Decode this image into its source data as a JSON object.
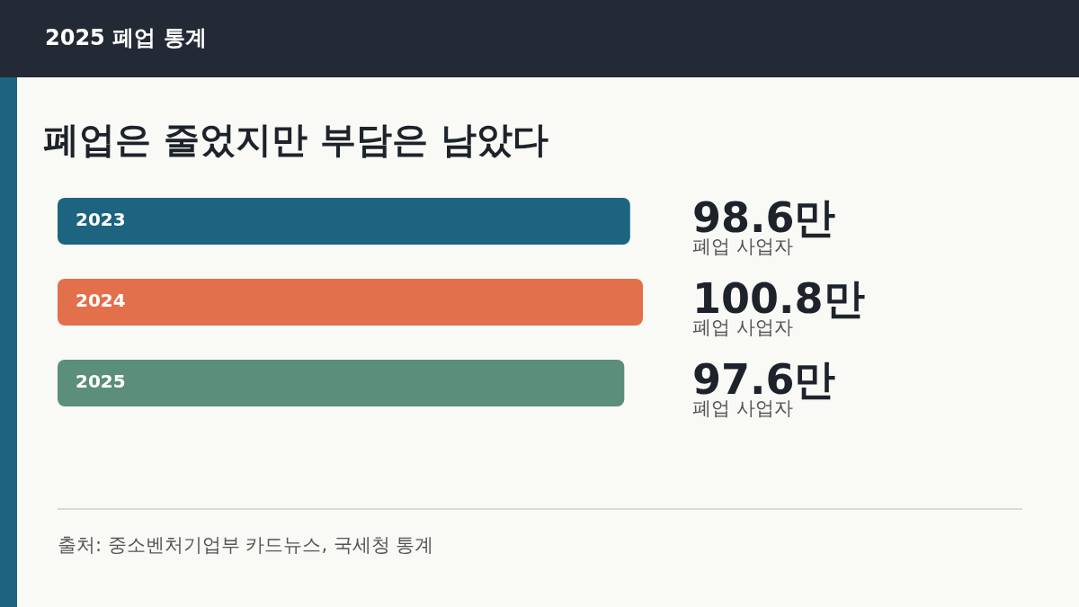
{
  "chart_data": {
    "type": "bar",
    "orientation": "horizontal",
    "subtitle": "2025 폐업 통계",
    "title": "폐업은 줄었지만 부담은 남았다",
    "categories": [
      "2023",
      "2024",
      "2025"
    ],
    "values": [
      98.6,
      100.8,
      97.6
    ],
    "colors": [
      "#1d6480",
      "#e2704b",
      "#5b8f7b"
    ],
    "value_labels": [
      "98.6만",
      "100.8만",
      "97.6만"
    ],
    "annotations": [
      "폐업 사업자",
      "폐업 사업자",
      "폐업 사업자",
      "출처: 중소벤처기업부 카드뉴스, 국세청 통계"
    ],
    "tick_labels": "y",
    "grid": false,
    "legend": false
  }
}
